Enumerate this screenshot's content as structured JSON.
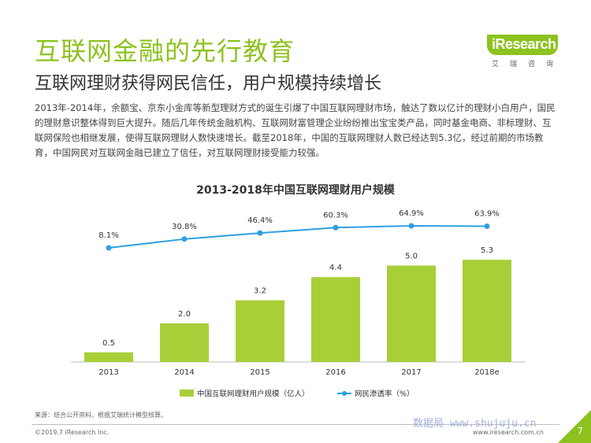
{
  "header": {
    "title": "互联网金融的先行教育",
    "subtitle": "互联网理财获得网民信任，用户规模持续增长",
    "paragraph": "2013年-2014年，余额宝、京东小金库等新型理财方式的诞生引爆了中国互联网理财市场，触达了数以亿计的理财小白用户，国民的理财意识整体得到巨大提升。随后几年传统金融机构、互联网财富管理企业纷纷推出宝宝类产品，同时基金电商、非标理财、互联网保险也相继发展，使得互联网理财人数快速增长。截至2018年，中国的互联网理财人数已经达到5.3亿，经过前期的市场教育，中国网民对互联网金融已建立了信任，对互联网理财接受能力较强。"
  },
  "logo": {
    "text": "iResearch",
    "cn": "艾瑞咨询"
  },
  "colors": {
    "brand_green": "#8dc21f",
    "bar_green": "#a8cf38",
    "line_blue": "#2f9ee0"
  },
  "chart_data": {
    "type": "bar",
    "title": "2013-2018年中国互联网理财用户规模",
    "categories": [
      "2013",
      "2014",
      "2015",
      "2016",
      "2017",
      "2018e"
    ],
    "series": [
      {
        "name": "中国互联网理财用户规模（亿人）",
        "type": "bar",
        "values": [
          0.5,
          2.0,
          3.2,
          4.4,
          5.0,
          5.3
        ],
        "labels": [
          "0.5",
          "2.0",
          "3.2",
          "4.4",
          "5.0",
          "5.3"
        ]
      },
      {
        "name": "网民渗透率（%）",
        "type": "line",
        "values": [
          8.1,
          30.8,
          46.4,
          60.3,
          64.9,
          63.9
        ],
        "labels": [
          "8.1%",
          "30.8%",
          "46.4%",
          "60.3%",
          "64.9%",
          "63.9%"
        ]
      }
    ],
    "legend": "bottom",
    "grid": false
  },
  "footer": {
    "source": "来源：结合公开资料，根据艾瑞统计模型核算。",
    "copyright": "©2019.7 iResearch Inc.",
    "website": "www.iresearch.com.cn",
    "watermark": "数据局 www.shujuju.cn",
    "page": "7"
  }
}
